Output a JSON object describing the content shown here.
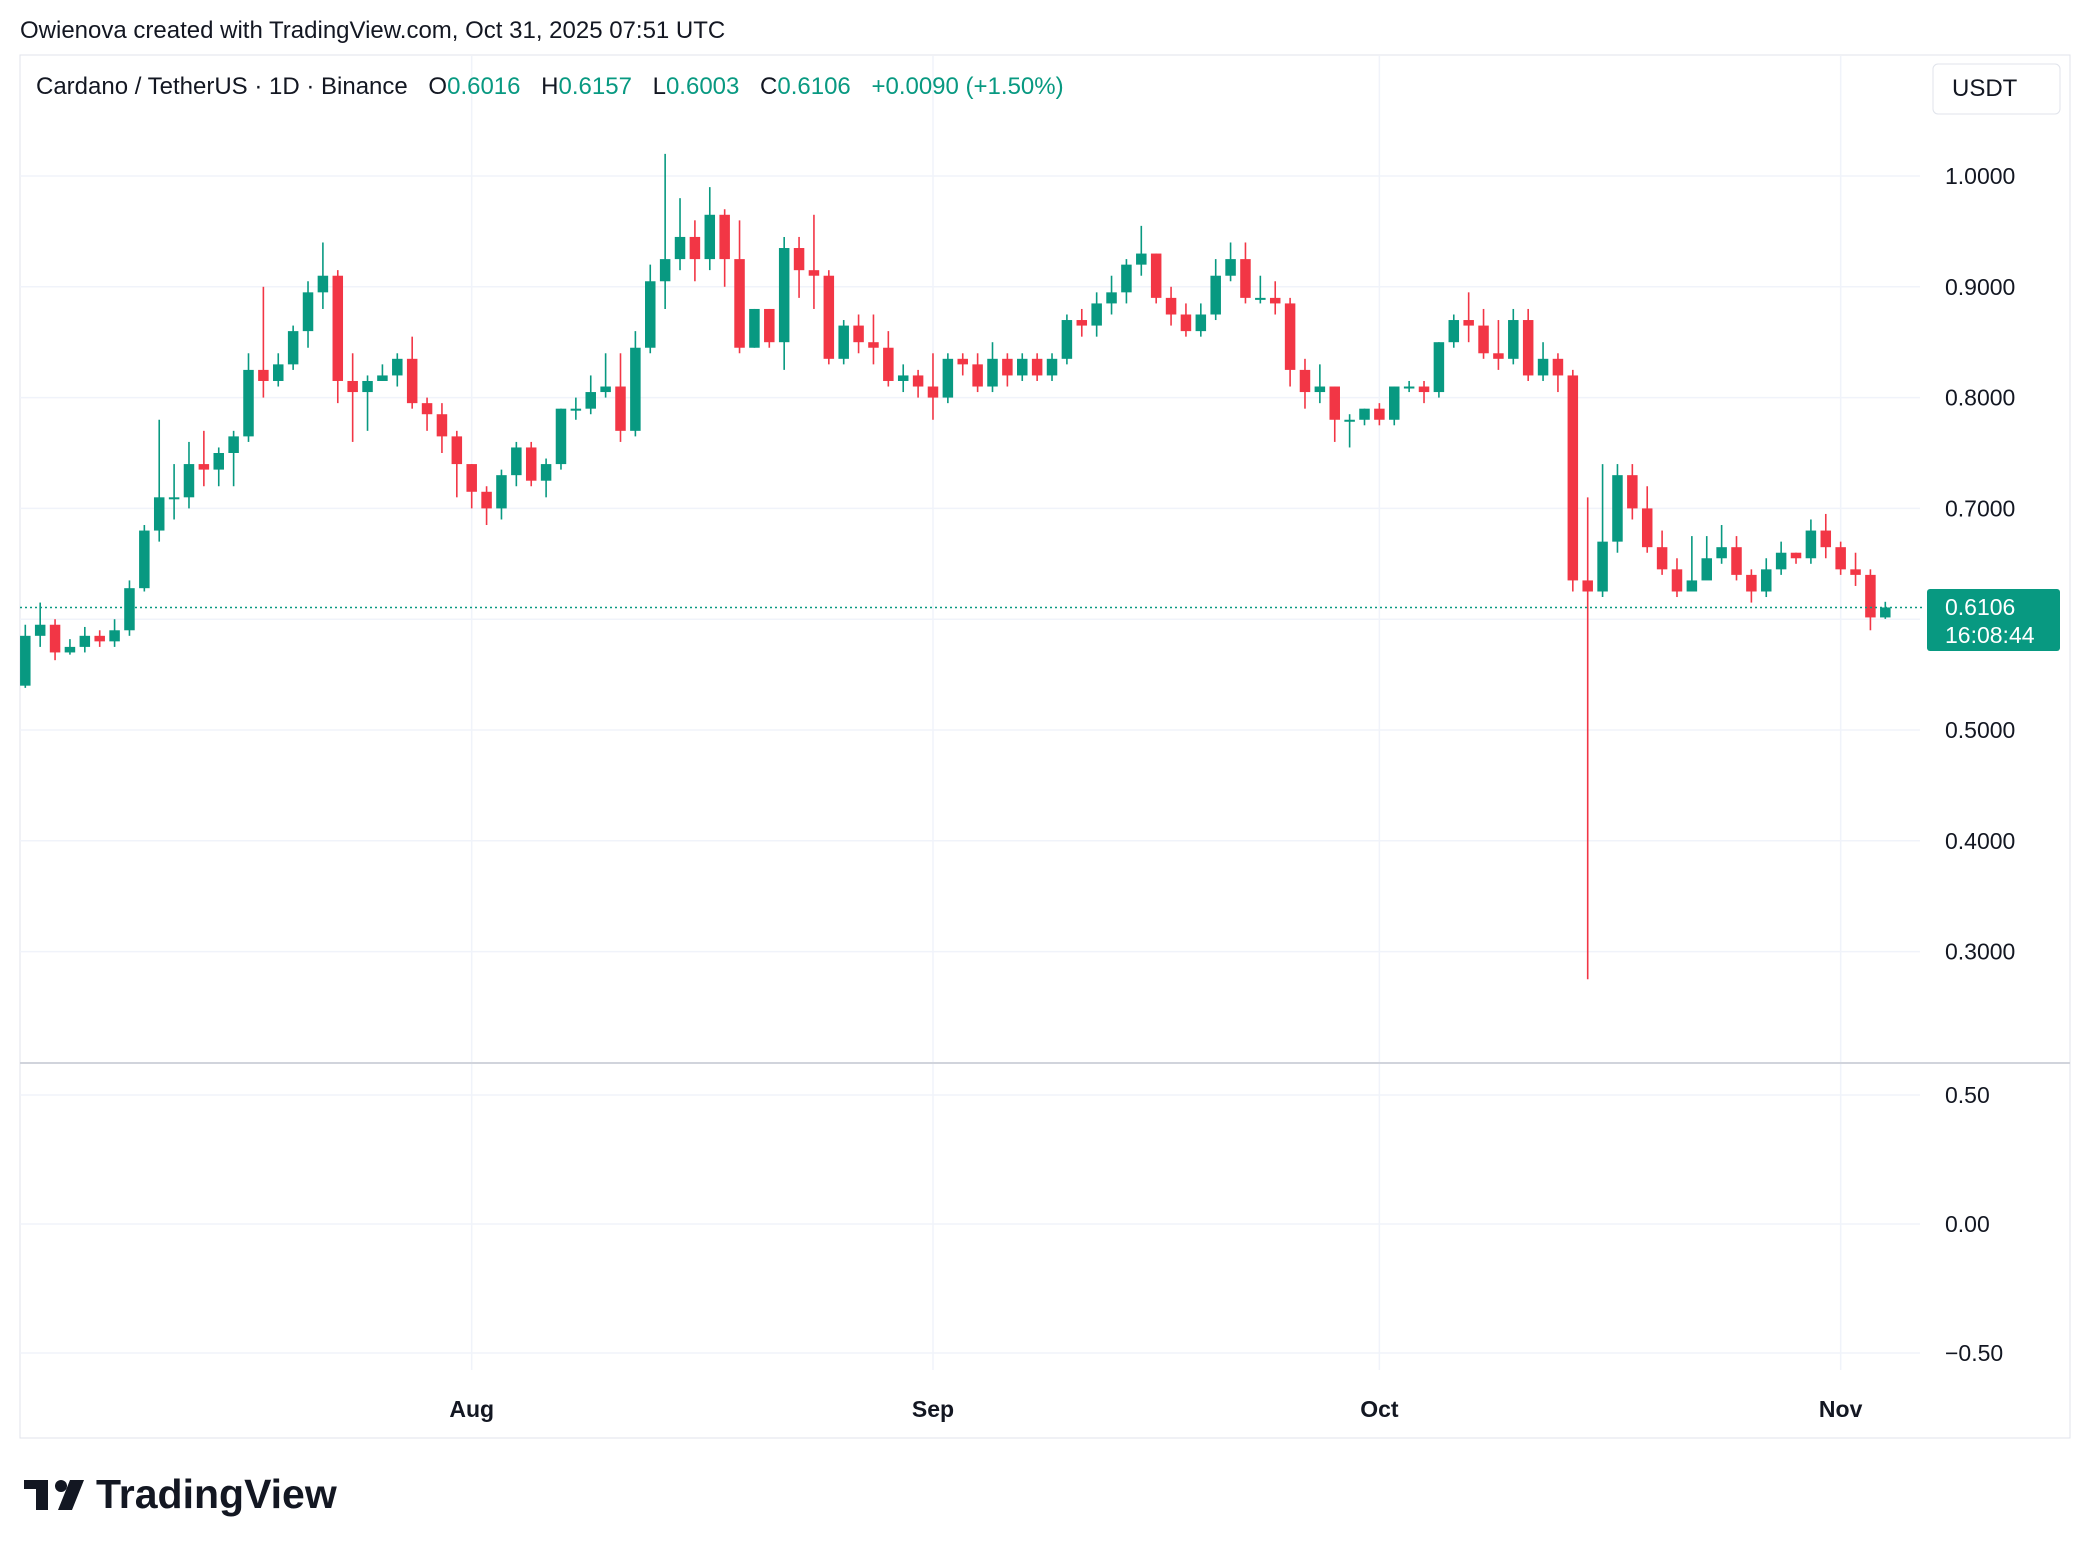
{
  "attribution": "Owienova created with TradingView.com, Oct 31, 2025 07:51 UTC",
  "legend": {
    "symbol": "Cardano / TetherUS · 1D · Binance",
    "open_label": "O",
    "open": "0.6016",
    "high_label": "H",
    "high": "0.6157",
    "low_label": "L",
    "low": "0.6003",
    "close_label": "C",
    "close": "0.6106",
    "change": "+0.0090 (+1.50%)"
  },
  "currency_button": "USDT",
  "last_price": {
    "value": "0.6106",
    "countdown": "16:08:44"
  },
  "logo_text": "TradingView",
  "colors": {
    "up": "#089981",
    "down": "#F23645",
    "grid": "#F0F3FA",
    "text": "#131722"
  },
  "chart_data": {
    "type": "candlestick",
    "title": "Cardano / TetherUS · 1D · Binance",
    "price_ticks": [
      "1.0000",
      "0.9000",
      "0.8000",
      "0.7000",
      "0.5000",
      "0.4000",
      "0.3000"
    ],
    "price_range": [
      0.2,
      1.05
    ],
    "indicator_ticks": [
      "0.50",
      "0.00",
      "−0.50"
    ],
    "indicator_range": [
      -0.6,
      0.75
    ],
    "x_labels": [
      "Aug",
      "Sep",
      "Oct",
      "Nov"
    ],
    "x_label_dates": [
      "2025-08-01",
      "2025-09-01",
      "2025-10-01",
      "2025-11-01"
    ],
    "first_date": "2025-07-02",
    "candles": [
      [
        0.54,
        0.585,
        0.595,
        0.538
      ],
      [
        0.585,
        0.595,
        0.615,
        0.575
      ],
      [
        0.595,
        0.57,
        0.6,
        0.563
      ],
      [
        0.57,
        0.575,
        0.582,
        0.568
      ],
      [
        0.575,
        0.585,
        0.593,
        0.57
      ],
      [
        0.585,
        0.58,
        0.59,
        0.575
      ],
      [
        0.58,
        0.59,
        0.6,
        0.575
      ],
      [
        0.59,
        0.628,
        0.635,
        0.585
      ],
      [
        0.628,
        0.68,
        0.685,
        0.625
      ],
      [
        0.68,
        0.71,
        0.78,
        0.67
      ],
      [
        0.71,
        0.71,
        0.74,
        0.69
      ],
      [
        0.71,
        0.74,
        0.76,
        0.7
      ],
      [
        0.74,
        0.735,
        0.77,
        0.72
      ],
      [
        0.735,
        0.75,
        0.755,
        0.72
      ],
      [
        0.75,
        0.765,
        0.77,
        0.72
      ],
      [
        0.765,
        0.825,
        0.84,
        0.76
      ],
      [
        0.825,
        0.815,
        0.9,
        0.8
      ],
      [
        0.815,
        0.83,
        0.84,
        0.81
      ],
      [
        0.83,
        0.86,
        0.865,
        0.825
      ],
      [
        0.86,
        0.895,
        0.905,
        0.845
      ],
      [
        0.895,
        0.91,
        0.94,
        0.88
      ],
      [
        0.91,
        0.815,
        0.915,
        0.795
      ],
      [
        0.815,
        0.805,
        0.84,
        0.76
      ],
      [
        0.805,
        0.815,
        0.82,
        0.77
      ],
      [
        0.815,
        0.82,
        0.83,
        0.815
      ],
      [
        0.82,
        0.835,
        0.84,
        0.81
      ],
      [
        0.835,
        0.795,
        0.855,
        0.79
      ],
      [
        0.795,
        0.785,
        0.8,
        0.77
      ],
      [
        0.785,
        0.765,
        0.795,
        0.75
      ],
      [
        0.765,
        0.74,
        0.77,
        0.71
      ],
      [
        0.74,
        0.715,
        0.74,
        0.7
      ],
      [
        0.715,
        0.7,
        0.72,
        0.685
      ],
      [
        0.7,
        0.73,
        0.735,
        0.69
      ],
      [
        0.73,
        0.755,
        0.76,
        0.72
      ],
      [
        0.755,
        0.725,
        0.76,
        0.72
      ],
      [
        0.725,
        0.74,
        0.745,
        0.71
      ],
      [
        0.74,
        0.79,
        0.79,
        0.735
      ],
      [
        0.79,
        0.79,
        0.8,
        0.78
      ],
      [
        0.79,
        0.805,
        0.82,
        0.785
      ],
      [
        0.805,
        0.81,
        0.84,
        0.8
      ],
      [
        0.81,
        0.77,
        0.84,
        0.76
      ],
      [
        0.77,
        0.845,
        0.86,
        0.765
      ],
      [
        0.845,
        0.905,
        0.92,
        0.84
      ],
      [
        0.905,
        0.925,
        1.02,
        0.88
      ],
      [
        0.925,
        0.945,
        0.98,
        0.915
      ],
      [
        0.945,
        0.925,
        0.96,
        0.905
      ],
      [
        0.925,
        0.965,
        0.99,
        0.915
      ],
      [
        0.965,
        0.925,
        0.97,
        0.9
      ],
      [
        0.925,
        0.845,
        0.96,
        0.84
      ],
      [
        0.845,
        0.88,
        0.88,
        0.845
      ],
      [
        0.88,
        0.85,
        0.88,
        0.845
      ],
      [
        0.85,
        0.935,
        0.945,
        0.825
      ],
      [
        0.935,
        0.915,
        0.945,
        0.89
      ],
      [
        0.915,
        0.91,
        0.965,
        0.88
      ],
      [
        0.91,
        0.835,
        0.915,
        0.83
      ],
      [
        0.835,
        0.865,
        0.87,
        0.83
      ],
      [
        0.865,
        0.85,
        0.875,
        0.84
      ],
      [
        0.85,
        0.845,
        0.875,
        0.83
      ],
      [
        0.845,
        0.815,
        0.86,
        0.81
      ],
      [
        0.815,
        0.82,
        0.83,
        0.805
      ],
      [
        0.82,
        0.81,
        0.825,
        0.8
      ],
      [
        0.81,
        0.8,
        0.84,
        0.78
      ],
      [
        0.8,
        0.835,
        0.84,
        0.795
      ],
      [
        0.835,
        0.83,
        0.84,
        0.82
      ],
      [
        0.83,
        0.81,
        0.84,
        0.805
      ],
      [
        0.81,
        0.835,
        0.85,
        0.805
      ],
      [
        0.835,
        0.82,
        0.84,
        0.81
      ],
      [
        0.82,
        0.835,
        0.84,
        0.815
      ],
      [
        0.835,
        0.82,
        0.84,
        0.815
      ],
      [
        0.82,
        0.835,
        0.84,
        0.815
      ],
      [
        0.835,
        0.87,
        0.875,
        0.83
      ],
      [
        0.87,
        0.865,
        0.88,
        0.855
      ],
      [
        0.865,
        0.885,
        0.895,
        0.855
      ],
      [
        0.885,
        0.895,
        0.91,
        0.875
      ],
      [
        0.895,
        0.92,
        0.925,
        0.885
      ],
      [
        0.92,
        0.93,
        0.955,
        0.91
      ],
      [
        0.93,
        0.89,
        0.93,
        0.885
      ],
      [
        0.89,
        0.875,
        0.9,
        0.865
      ],
      [
        0.875,
        0.86,
        0.885,
        0.855
      ],
      [
        0.86,
        0.875,
        0.885,
        0.855
      ],
      [
        0.875,
        0.91,
        0.925,
        0.87
      ],
      [
        0.91,
        0.925,
        0.94,
        0.905
      ],
      [
        0.925,
        0.89,
        0.94,
        0.885
      ],
      [
        0.89,
        0.89,
        0.91,
        0.885
      ],
      [
        0.89,
        0.885,
        0.905,
        0.875
      ],
      [
        0.885,
        0.825,
        0.89,
        0.81
      ],
      [
        0.825,
        0.805,
        0.835,
        0.79
      ],
      [
        0.805,
        0.81,
        0.83,
        0.795
      ],
      [
        0.81,
        0.78,
        0.81,
        0.76
      ],
      [
        0.78,
        0.78,
        0.785,
        0.755
      ],
      [
        0.78,
        0.79,
        0.79,
        0.775
      ],
      [
        0.79,
        0.78,
        0.795,
        0.775
      ],
      [
        0.78,
        0.81,
        0.81,
        0.775
      ],
      [
        0.81,
        0.81,
        0.815,
        0.805
      ],
      [
        0.81,
        0.805,
        0.815,
        0.795
      ],
      [
        0.805,
        0.85,
        0.85,
        0.8
      ],
      [
        0.85,
        0.87,
        0.875,
        0.845
      ],
      [
        0.87,
        0.865,
        0.895,
        0.85
      ],
      [
        0.865,
        0.84,
        0.88,
        0.835
      ],
      [
        0.84,
        0.835,
        0.87,
        0.825
      ],
      [
        0.835,
        0.87,
        0.88,
        0.83
      ],
      [
        0.87,
        0.82,
        0.88,
        0.815
      ],
      [
        0.82,
        0.835,
        0.85,
        0.815
      ],
      [
        0.835,
        0.82,
        0.84,
        0.805
      ],
      [
        0.82,
        0.635,
        0.825,
        0.625
      ],
      [
        0.635,
        0.625,
        0.71,
        0.275
      ],
      [
        0.625,
        0.67,
        0.74,
        0.62
      ],
      [
        0.67,
        0.73,
        0.74,
        0.66
      ],
      [
        0.73,
        0.7,
        0.74,
        0.69
      ],
      [
        0.7,
        0.665,
        0.72,
        0.66
      ],
      [
        0.665,
        0.645,
        0.68,
        0.64
      ],
      [
        0.645,
        0.625,
        0.655,
        0.62
      ],
      [
        0.625,
        0.635,
        0.675,
        0.625
      ],
      [
        0.635,
        0.655,
        0.675,
        0.645
      ],
      [
        0.655,
        0.665,
        0.685,
        0.65
      ],
      [
        0.665,
        0.64,
        0.675,
        0.635
      ],
      [
        0.64,
        0.625,
        0.645,
        0.615
      ],
      [
        0.625,
        0.645,
        0.655,
        0.62
      ],
      [
        0.645,
        0.66,
        0.67,
        0.64
      ],
      [
        0.66,
        0.655,
        0.66,
        0.65
      ],
      [
        0.655,
        0.68,
        0.69,
        0.65
      ],
      [
        0.68,
        0.665,
        0.695,
        0.655
      ],
      [
        0.665,
        0.645,
        0.67,
        0.64
      ],
      [
        0.645,
        0.64,
        0.66,
        0.63
      ],
      [
        0.64,
        0.6016,
        0.645,
        0.59
      ],
      [
        0.6016,
        0.6106,
        0.6157,
        0.6003
      ]
    ]
  }
}
